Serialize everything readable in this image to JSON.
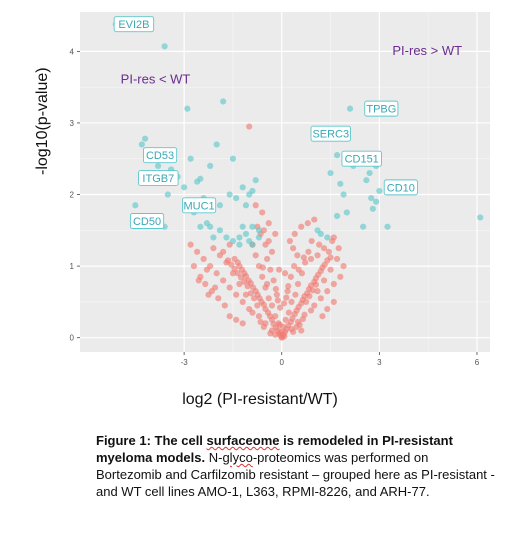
{
  "chart_data": {
    "type": "scatter",
    "title": "",
    "xlabel": "log2 (PI-resistant/WT)",
    "ylabel": "-log10(p-value)",
    "xlim": [
      -6.2,
      6.4
    ],
    "ylim": [
      -0.2,
      4.55
    ],
    "x_ticks": [
      -3,
      0,
      3,
      6
    ],
    "y_ticks": [
      0,
      1,
      2,
      3,
      4
    ],
    "grid": true,
    "colors": {
      "significant": "#5ec8cc",
      "not_significant": "#f07a73",
      "panel": "#ebebeb",
      "label_text": "#3aa8b5",
      "group_text": "#6a2c8f"
    },
    "group_labels": [
      {
        "text": "PI-res > WT",
        "x": 3.4,
        "y": 3.95
      },
      {
        "text": "PI-res < WT",
        "x": -4.95,
        "y": 3.55
      }
    ],
    "labels": [
      {
        "text": "EVI2B",
        "x": -5.15,
        "y": 4.38
      },
      {
        "text": "TPBG",
        "x": 2.55,
        "y": 3.2
      },
      {
        "text": "SERC3",
        "x": 0.9,
        "y": 2.85
      },
      {
        "text": "CD151",
        "x": 1.85,
        "y": 2.5
      },
      {
        "text": "CD53",
        "x": -4.25,
        "y": 2.55
      },
      {
        "text": "ITGB7",
        "x": -4.4,
        "y": 2.23
      },
      {
        "text": "CD10",
        "x": 3.15,
        "y": 2.1
      },
      {
        "text": "MUC1",
        "x": -3.05,
        "y": 1.85
      },
      {
        "text": "CD50",
        "x": -4.65,
        "y": 1.63
      }
    ],
    "series": [
      {
        "category": "significant",
        "points": [
          [
            -5.1,
            4.38
          ],
          [
            -3.6,
            4.07
          ],
          [
            -2.9,
            3.2
          ],
          [
            -1.8,
            3.3
          ],
          [
            2.1,
            3.2
          ],
          [
            1.6,
            2.85
          ],
          [
            -4.3,
            2.7
          ],
          [
            -4.2,
            2.78
          ],
          [
            -4.1,
            2.6
          ],
          [
            -3.8,
            2.4
          ],
          [
            -3.7,
            2.2
          ],
          [
            -3.4,
            2.35
          ],
          [
            -3.5,
            2.0
          ],
          [
            -3.2,
            2.25
          ],
          [
            -3.0,
            2.1
          ],
          [
            -2.8,
            2.5
          ],
          [
            -2.6,
            2.18
          ],
          [
            -2.5,
            2.22
          ],
          [
            -2.4,
            1.95
          ],
          [
            -2.2,
            2.4
          ],
          [
            -2.0,
            2.7
          ],
          [
            -1.5,
            2.5
          ],
          [
            -1.9,
            1.85
          ],
          [
            -1.6,
            2.0
          ],
          [
            -1.4,
            1.95
          ],
          [
            -1.2,
            2.1
          ],
          [
            -1.0,
            2.0
          ],
          [
            -0.9,
            2.05
          ],
          [
            -1.1,
            1.85
          ],
          [
            -0.8,
            2.2
          ],
          [
            -2.7,
            1.75
          ],
          [
            -2.5,
            1.55
          ],
          [
            -2.3,
            1.6
          ],
          [
            -2.1,
            1.4
          ],
          [
            -1.9,
            1.5
          ],
          [
            -1.7,
            1.4
          ],
          [
            -1.5,
            1.35
          ],
          [
            -1.3,
            1.3
          ],
          [
            -1.2,
            1.55
          ],
          [
            -1.1,
            1.45
          ],
          [
            -0.9,
            1.3
          ],
          [
            -0.7,
            1.4
          ],
          [
            -3.6,
            1.55
          ],
          [
            -3.9,
            1.7
          ],
          [
            -4.5,
            1.85
          ],
          [
            -1.0,
            1.35
          ],
          [
            -1.3,
            1.4
          ],
          [
            1.1,
            1.5
          ],
          [
            1.2,
            1.45
          ],
          [
            1.4,
            1.4
          ],
          [
            1.5,
            2.3
          ],
          [
            1.7,
            2.55
          ],
          [
            1.8,
            2.15
          ],
          [
            1.7,
            1.7
          ],
          [
            1.9,
            2.0
          ],
          [
            2.0,
            1.75
          ],
          [
            2.2,
            2.4
          ],
          [
            2.3,
            2.55
          ],
          [
            2.6,
            2.2
          ],
          [
            2.7,
            2.3
          ],
          [
            2.9,
            2.4
          ],
          [
            2.75,
            1.95
          ],
          [
            2.8,
            1.8
          ],
          [
            3.0,
            2.05
          ],
          [
            3.25,
            1.55
          ],
          [
            6.1,
            1.68
          ],
          [
            2.9,
            1.9
          ],
          [
            2.5,
            1.55
          ],
          [
            -2.2,
            1.55
          ],
          [
            -0.9,
            1.55
          ],
          [
            -0.7,
            1.5
          ]
        ]
      },
      {
        "category": "not_significant",
        "points": [
          [
            0.0,
            0.0
          ],
          [
            0.02,
            0.01
          ],
          [
            -0.04,
            0.03
          ],
          [
            0.05,
            0.05
          ],
          [
            -0.08,
            0.06
          ],
          [
            0.1,
            0.08
          ],
          [
            -0.12,
            0.1
          ],
          [
            0.15,
            0.12
          ],
          [
            -0.18,
            0.14
          ],
          [
            0.2,
            0.17
          ],
          [
            -0.25,
            0.19
          ],
          [
            0.28,
            0.22
          ],
          [
            -0.3,
            0.25
          ],
          [
            0.33,
            0.27
          ],
          [
            -0.36,
            0.3
          ],
          [
            0.4,
            0.33
          ],
          [
            -0.42,
            0.35
          ],
          [
            0.46,
            0.38
          ],
          [
            -0.5,
            0.4
          ],
          [
            0.52,
            0.43
          ],
          [
            -0.55,
            0.46
          ],
          [
            0.6,
            0.48
          ],
          [
            -0.62,
            0.5
          ],
          [
            0.65,
            0.53
          ],
          [
            -0.68,
            0.55
          ],
          [
            0.7,
            0.58
          ],
          [
            -0.74,
            0.6
          ],
          [
            0.78,
            0.62
          ],
          [
            -0.8,
            0.65
          ],
          [
            0.84,
            0.68
          ],
          [
            -0.88,
            0.7
          ],
          [
            0.9,
            0.73
          ],
          [
            -0.95,
            0.76
          ],
          [
            1.0,
            0.78
          ],
          [
            -1.02,
            0.8
          ],
          [
            1.05,
            0.83
          ],
          [
            -1.1,
            0.86
          ],
          [
            1.12,
            0.88
          ],
          [
            -1.15,
            0.9
          ],
          [
            1.2,
            0.93
          ],
          [
            -1.22,
            0.95
          ],
          [
            1.25,
            0.98
          ],
          [
            -1.3,
            1.0
          ],
          [
            1.32,
            1.02
          ],
          [
            -1.35,
            1.05
          ],
          [
            1.4,
            1.08
          ],
          [
            -1.45,
            1.1
          ],
          [
            1.5,
            1.12
          ],
          [
            -0.1,
            0.2
          ],
          [
            0.12,
            0.25
          ],
          [
            -0.2,
            0.3
          ],
          [
            0.22,
            0.35
          ],
          [
            -0.3,
            0.45
          ],
          [
            0.3,
            0.5
          ],
          [
            -0.4,
            0.55
          ],
          [
            0.42,
            0.6
          ],
          [
            -0.5,
            0.7
          ],
          [
            0.5,
            0.75
          ],
          [
            -0.6,
            0.85
          ],
          [
            0.62,
            0.9
          ],
          [
            -0.7,
            1.0
          ],
          [
            0.72,
            1.05
          ],
          [
            -0.8,
            1.15
          ],
          [
            0.82,
            1.2
          ],
          [
            -0.9,
            1.3
          ],
          [
            0.92,
            1.35
          ],
          [
            -1.0,
            0.4
          ],
          [
            1.0,
            0.45
          ],
          [
            -1.2,
            0.5
          ],
          [
            1.2,
            0.55
          ],
          [
            -1.4,
            0.6
          ],
          [
            1.4,
            0.65
          ],
          [
            -1.6,
            0.7
          ],
          [
            1.6,
            0.75
          ],
          [
            -1.8,
            0.8
          ],
          [
            1.8,
            0.85
          ],
          [
            -2.0,
            0.9
          ],
          [
            -2.2,
            1.0
          ],
          [
            -2.4,
            1.1
          ],
          [
            -2.6,
            1.2
          ],
          [
            -2.8,
            1.3
          ],
          [
            -0.3,
            0.1
          ],
          [
            0.3,
            0.12
          ],
          [
            -0.5,
            0.2
          ],
          [
            0.5,
            0.22
          ],
          [
            -0.7,
            0.3
          ],
          [
            0.7,
            0.32
          ],
          [
            -0.9,
            0.35
          ],
          [
            0.9,
            0.38
          ],
          [
            -1.1,
            0.6
          ],
          [
            1.1,
            0.65
          ],
          [
            -1.3,
            0.75
          ],
          [
            1.3,
            0.8
          ],
          [
            -1.5,
            0.9
          ],
          [
            1.5,
            0.95
          ],
          [
            -1.7,
            1.05
          ],
          [
            -1.9,
            1.15
          ],
          [
            -2.1,
            1.25
          ],
          [
            -2.3,
            0.95
          ],
          [
            -2.5,
            0.85
          ],
          [
            -1.6,
            1.3
          ],
          [
            -1.8,
            1.2
          ],
          [
            -0.4,
            1.6
          ],
          [
            -0.2,
            1.45
          ],
          [
            -0.6,
            1.75
          ],
          [
            -0.8,
            1.85
          ],
          [
            -1.0,
            2.95
          ],
          [
            -0.3,
            1.2
          ],
          [
            -0.5,
            1.3
          ],
          [
            0.25,
            1.35
          ],
          [
            0.4,
            1.45
          ],
          [
            0.6,
            1.55
          ],
          [
            0.8,
            1.6
          ],
          [
            1.0,
            1.65
          ],
          [
            1.3,
            1.25
          ],
          [
            1.6,
            1.4
          ],
          [
            1.7,
            1.1
          ],
          [
            1.9,
            1.0
          ],
          [
            1.25,
            0.3
          ],
          [
            1.4,
            0.4
          ],
          [
            1.6,
            0.5
          ],
          [
            -0.15,
            0.6
          ],
          [
            0.18,
            0.65
          ],
          [
            -0.25,
            0.8
          ],
          [
            0.28,
            0.85
          ],
          [
            -0.35,
            0.95
          ],
          [
            0.38,
            1.0
          ],
          [
            -0.45,
            1.1
          ],
          [
            0.48,
            1.15
          ],
          [
            -0.55,
            0.15
          ],
          [
            0.55,
            0.18
          ],
          [
            -0.65,
            0.22
          ],
          [
            0.65,
            0.26
          ],
          [
            -0.75,
            0.45
          ],
          [
            0.75,
            0.5
          ],
          [
            -0.85,
            0.55
          ],
          [
            0.85,
            0.58
          ],
          [
            -0.95,
            0.62
          ],
          [
            0.95,
            0.66
          ],
          [
            -1.05,
            0.72
          ],
          [
            1.05,
            0.74
          ],
          [
            -1.15,
            0.78
          ],
          [
            -1.25,
            0.84
          ],
          [
            -1.35,
            0.9
          ],
          [
            -1.45,
            0.96
          ],
          [
            -1.55,
            1.02
          ],
          [
            -1.65,
            1.08
          ],
          [
            -2.05,
            0.7
          ],
          [
            -2.25,
            0.6
          ],
          [
            -0.05,
            0.42
          ],
          [
            0.07,
            0.48
          ],
          [
            -0.12,
            0.52
          ],
          [
            0.14,
            0.56
          ],
          [
            -0.18,
            0.68
          ],
          [
            0.2,
            0.72
          ],
          [
            0.1,
            0.9
          ],
          [
            -0.08,
            0.95
          ],
          [
            0.35,
            1.25
          ],
          [
            -0.4,
            1.35
          ],
          [
            -0.65,
            1.45
          ],
          [
            -0.55,
            1.5
          ],
          [
            -0.75,
            1.55
          ],
          [
            1.15,
            1.3
          ],
          [
            1.45,
            1.2
          ],
          [
            1.55,
            1.35
          ],
          [
            1.75,
            1.25
          ],
          [
            -1.75,
            0.45
          ],
          [
            -1.95,
            0.55
          ],
          [
            -2.15,
            0.65
          ],
          [
            -2.35,
            0.75
          ],
          [
            -2.55,
            0.8
          ],
          [
            -2.7,
            1.0
          ],
          [
            -1.6,
            0.3
          ],
          [
            -1.4,
            0.25
          ],
          [
            -1.2,
            0.2
          ],
          [
            0.45,
            0.15
          ],
          [
            0.6,
            0.1
          ],
          [
            0.35,
            0.08
          ],
          [
            -0.35,
            0.06
          ],
          [
            -0.2,
            0.04
          ],
          [
            0.08,
            0.02
          ],
          [
            -0.02,
            0.08
          ],
          [
            0.04,
            0.15
          ],
          [
            -0.06,
            0.18
          ],
          [
            0.9,
            1.1
          ],
          [
            1.1,
            1.15
          ],
          [
            -0.45,
            0.75
          ],
          [
            0.52,
            0.95
          ],
          [
            -0.58,
            0.98
          ],
          [
            0.68,
            1.12
          ]
        ]
      }
    ]
  },
  "caption": {
    "label": "Figure 1: The cell ",
    "word_surfaceome": "surfaceome",
    "title_rest": " is remodeled in PI-resistant myeloma models.",
    "prefix": " N-",
    "word_glyco": "glyco",
    "text": "-proteomics was performed on Bortezomib and Carfilzomib resistant – grouped here as PI-resistant - and WT cell lines AMO-1, L363, RPMI-8226, and ARH-77."
  }
}
